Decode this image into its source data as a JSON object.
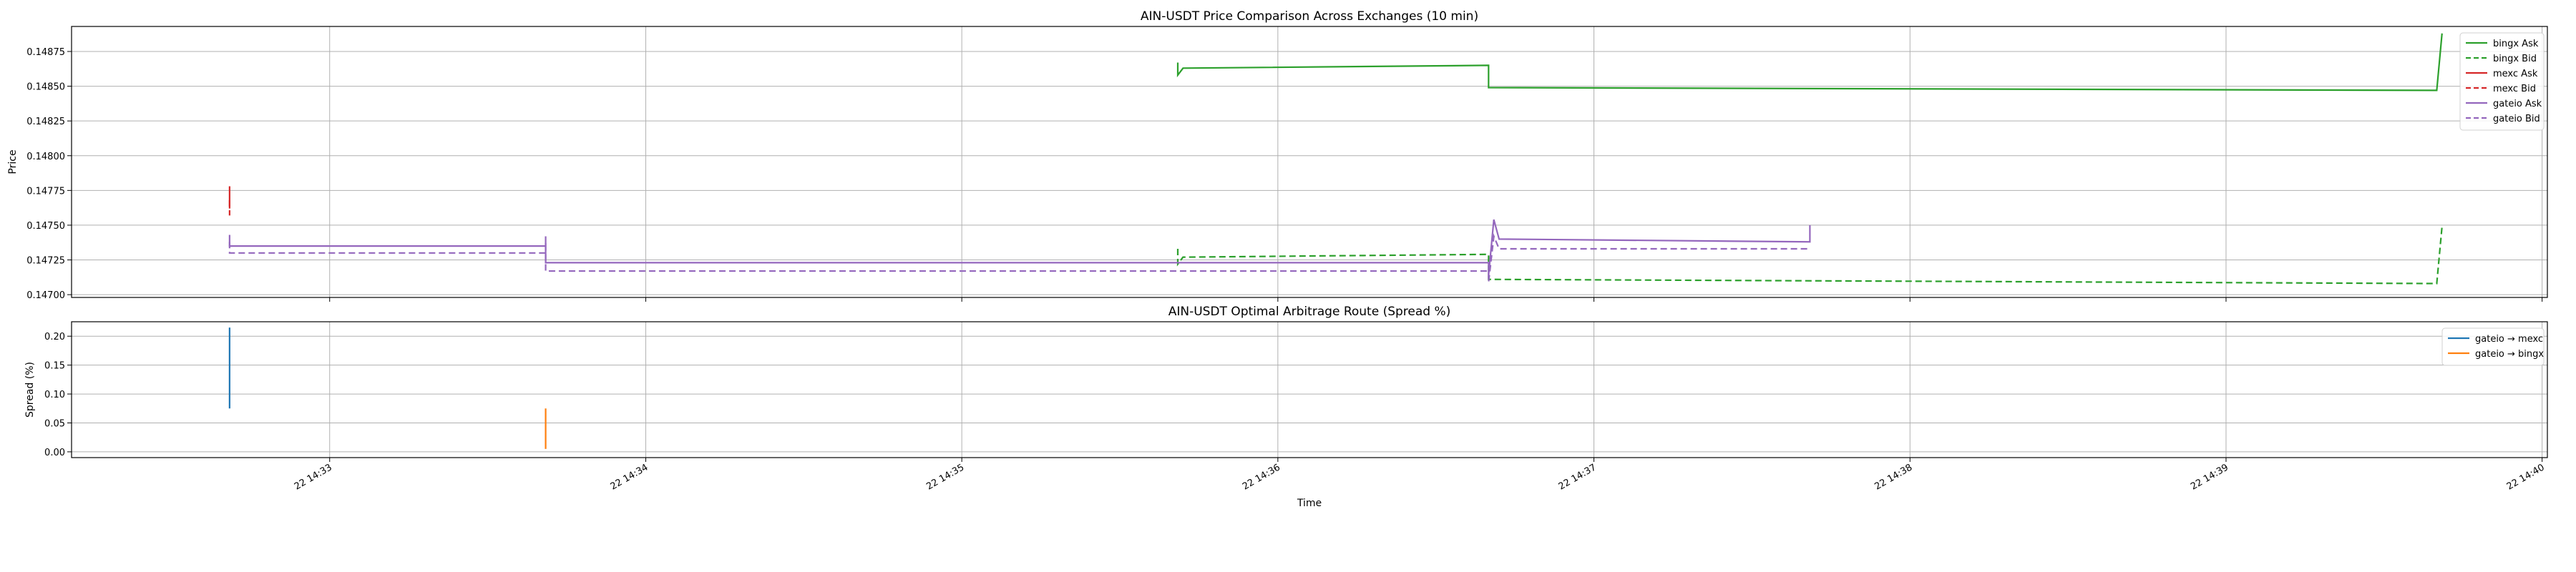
{
  "chart_data": [
    {
      "type": "line",
      "title": "AIN-USDT Price Comparison Across Exchanges (10 min)",
      "xlabel": "",
      "ylabel": "Price",
      "ylim": [
        0.14698,
        0.14893
      ],
      "yticks": [
        0.147,
        0.14725,
        0.1475,
        0.14775,
        0.148,
        0.14825,
        0.1485,
        0.14875
      ],
      "ytick_labels": [
        "0.14700",
        "0.14725",
        "0.14750",
        "0.14775",
        "0.14800",
        "0.14825",
        "0.14850",
        "0.14875"
      ],
      "grid": true,
      "legend_position": "top-right",
      "series": [
        {
          "name": "bingx Ask",
          "color": "#2ca02c",
          "dash": "solid",
          "segments": [
            [
              [
                "2024-01-22T14:35:41",
                0.14867
              ],
              [
                "2024-01-22T14:35:41",
                0.14858
              ],
              [
                "2024-01-22T14:35:42",
                0.14863
              ],
              [
                "2024-01-22T14:36:40",
                0.14865
              ],
              [
                "2024-01-22T14:36:40",
                0.14849
              ],
              [
                "2024-01-22T14:39:40",
                0.14847
              ],
              [
                "2024-01-22T14:39:41",
                0.14888
              ]
            ]
          ]
        },
        {
          "name": "bingx Bid",
          "color": "#2ca02c",
          "dash": "dashed",
          "segments": [
            [
              [
                "2024-01-22T14:35:41",
                0.14733
              ],
              [
                "2024-01-22T14:35:41",
                0.14722
              ],
              [
                "2024-01-22T14:35:42",
                0.14727
              ],
              [
                "2024-01-22T14:36:40",
                0.14729
              ],
              [
                "2024-01-22T14:36:40",
                0.14711
              ],
              [
                "2024-01-22T14:39:40",
                0.14708
              ],
              [
                "2024-01-22T14:39:41",
                0.14749
              ]
            ]
          ]
        },
        {
          "name": "mexc Ask",
          "color": "#d62728",
          "dash": "solid",
          "segments": [
            [
              [
                "2024-01-22T14:32:41",
                0.14778
              ],
              [
                "2024-01-22T14:32:41",
                0.14762
              ]
            ]
          ]
        },
        {
          "name": "mexc Bid",
          "color": "#d62728",
          "dash": "dashed",
          "segments": [
            [
              [
                "2024-01-22T14:32:41",
                0.14768
              ],
              [
                "2024-01-22T14:32:41",
                0.14757
              ]
            ]
          ]
        },
        {
          "name": "gateio Ask",
          "color": "#9467bd",
          "dash": "solid",
          "segments": [
            [
              [
                "2024-01-22T14:32:41",
                0.14743
              ],
              [
                "2024-01-22T14:32:41",
                0.14735
              ],
              [
                "2024-01-22T14:33:41",
                0.14735
              ],
              [
                "2024-01-22T14:33:41",
                0.14742
              ],
              [
                "2024-01-22T14:33:41",
                0.14723
              ],
              [
                "2024-01-22T14:36:40",
                0.14723
              ],
              [
                "2024-01-22T14:36:40",
                0.14714
              ],
              [
                "2024-01-22T14:36:41",
                0.14754
              ],
              [
                "2024-01-22T14:36:42",
                0.1474
              ],
              [
                "2024-01-22T14:37:41",
                0.14738
              ],
              [
                "2024-01-22T14:37:41",
                0.1475
              ]
            ]
          ]
        },
        {
          "name": "gateio Bid",
          "color": "#9467bd",
          "dash": "dashed",
          "segments": [
            [
              [
                "2024-01-22T14:32:41",
                0.14738
              ],
              [
                "2024-01-22T14:32:41",
                0.1473
              ],
              [
                "2024-01-22T14:33:41",
                0.1473
              ],
              [
                "2024-01-22T14:33:41",
                0.14738
              ],
              [
                "2024-01-22T14:33:41",
                0.14717
              ],
              [
                "2024-01-22T14:36:40",
                0.14717
              ],
              [
                "2024-01-22T14:36:40",
                0.14709
              ],
              [
                "2024-01-22T14:36:41",
                0.14742
              ],
              [
                "2024-01-22T14:36:42",
                0.14733
              ],
              [
                "2024-01-22T14:37:41",
                0.14733
              ]
            ]
          ]
        }
      ]
    },
    {
      "type": "line",
      "title": "AIN-USDT Optimal Arbitrage Route (Spread %)",
      "xlabel": "Time",
      "ylabel": "Spread (%)",
      "ylim": [
        -0.01,
        0.225
      ],
      "yticks": [
        0.0,
        0.05,
        0.1,
        0.15,
        0.2
      ],
      "ytick_labels": [
        "0.00",
        "0.05",
        "0.10",
        "0.15",
        "0.20"
      ],
      "xlim": [
        "2024-01-22T14:32:11",
        "2024-01-22T14:40:01"
      ],
      "xticks": [
        "2024-01-22T14:33:00",
        "2024-01-22T14:34:00",
        "2024-01-22T14:35:00",
        "2024-01-22T14:36:00",
        "2024-01-22T14:37:00",
        "2024-01-22T14:38:00",
        "2024-01-22T14:39:00",
        "2024-01-22T14:40:00"
      ],
      "xtick_labels": [
        "22 14:33",
        "22 14:34",
        "22 14:35",
        "22 14:36",
        "22 14:37",
        "22 14:38",
        "22 14:39",
        "22 14:40"
      ],
      "grid": true,
      "legend_position": "top-right",
      "series": [
        {
          "name": "gateio → mexc",
          "color": "#1f77b4",
          "dash": "solid",
          "segments": [
            [
              [
                "2024-01-22T14:32:41",
                0.215
              ],
              [
                "2024-01-22T14:32:41",
                0.075
              ]
            ]
          ]
        },
        {
          "name": "gateio → bingx",
          "color": "#ff7f0e",
          "dash": "solid",
          "segments": [
            [
              [
                "2024-01-22T14:33:41",
                0.075
              ],
              [
                "2024-01-22T14:33:41",
                0.005
              ]
            ]
          ]
        }
      ]
    }
  ]
}
